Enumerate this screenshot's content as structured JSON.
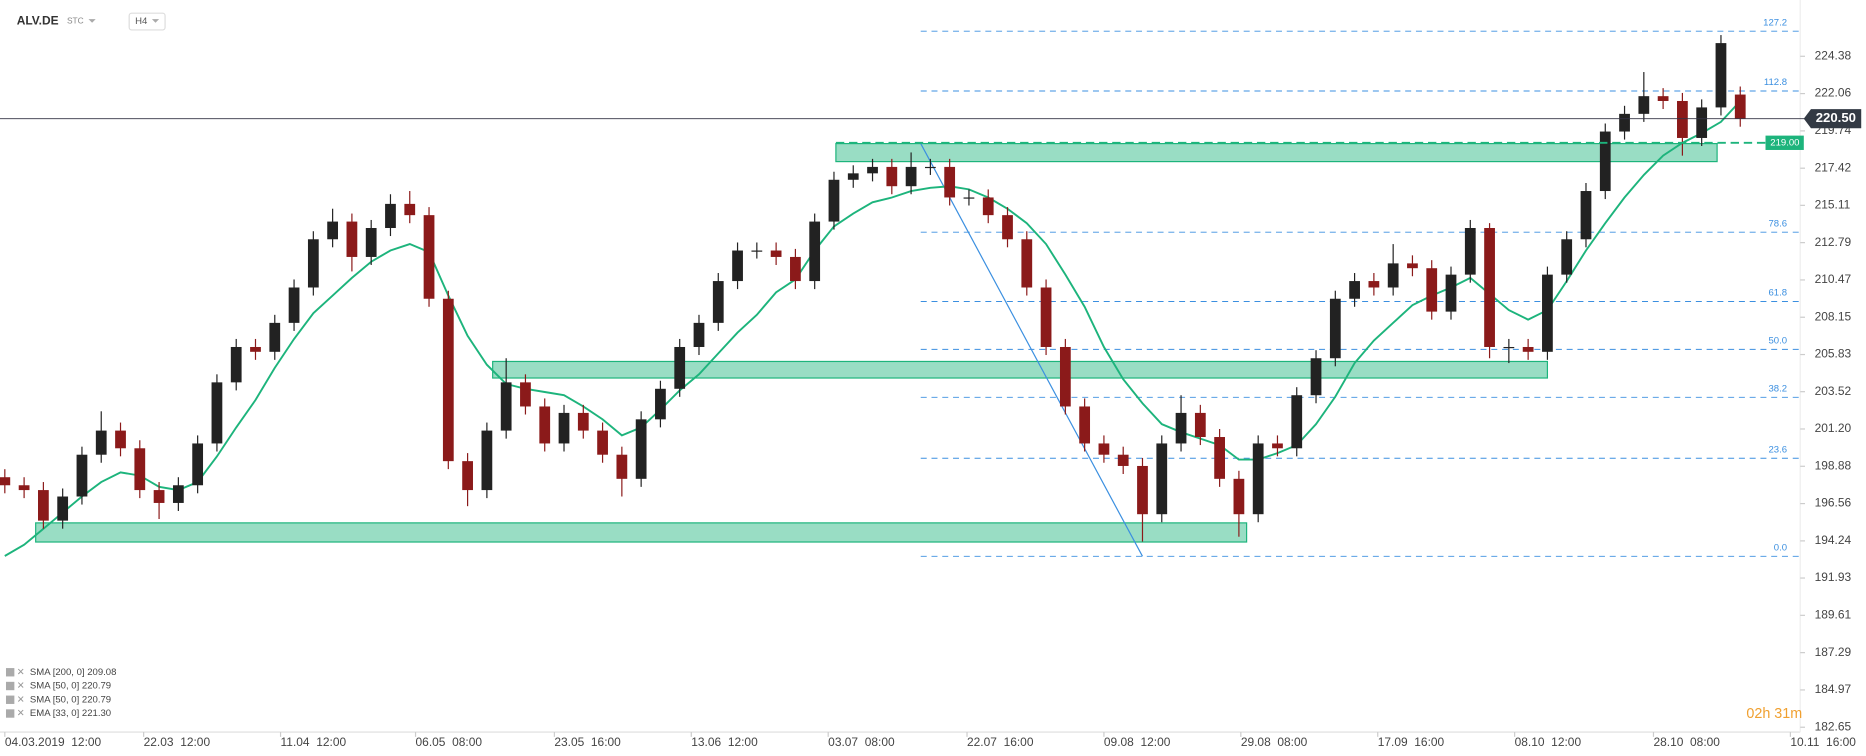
{
  "header": {
    "symbol": "ALV.DE",
    "market": "STC",
    "interval": "H4"
  },
  "timer": "02h 31m",
  "chart_data": {
    "type": "candlestick",
    "candles": {
      "open": [
        198.2,
        197.7,
        197.4,
        195.5,
        197.0,
        199.6,
        201.1,
        200.0,
        197.4,
        196.6,
        197.7,
        200.3,
        204.1,
        206.3,
        206.0,
        207.8,
        210.0,
        213.0,
        214.1,
        211.9,
        213.7,
        215.2,
        214.5,
        209.3,
        199.2,
        197.4,
        201.1,
        204.1,
        202.6,
        200.3,
        202.2,
        201.1,
        199.6,
        198.1,
        201.8,
        203.7,
        206.3,
        207.8,
        210.4,
        212.3,
        212.3,
        211.9,
        210.4,
        214.1,
        216.7,
        217.1,
        217.5,
        216.3,
        217.5,
        217.5,
        215.6,
        215.6,
        214.5,
        213.0,
        210.0,
        206.3,
        202.6,
        200.3,
        199.6,
        198.9,
        195.9,
        200.3,
        202.2,
        200.7,
        198.1,
        195.9,
        200.3,
        200.0,
        203.3,
        205.6,
        209.3,
        210.4,
        210.0,
        211.5,
        211.2,
        208.5,
        210.8,
        213.7,
        206.3,
        206.3,
        206.0,
        210.8,
        213.0,
        216.0,
        219.7,
        220.8,
        221.9,
        221.6,
        219.3,
        221.2,
        222.0
      ],
      "high": [
        198.7,
        198.2,
        197.9,
        197.5,
        200.1,
        202.3,
        201.6,
        200.5,
        197.9,
        198.2,
        200.8,
        204.6,
        206.8,
        206.8,
        208.3,
        210.5,
        213.5,
        214.9,
        214.6,
        214.2,
        215.8,
        216.0,
        215.0,
        209.8,
        199.7,
        201.6,
        205.6,
        204.6,
        203.1,
        202.7,
        202.7,
        201.6,
        200.1,
        202.3,
        204.2,
        206.8,
        208.3,
        210.9,
        212.8,
        212.8,
        212.8,
        212.4,
        214.6,
        217.2,
        217.6,
        218.0,
        218.0,
        218.4,
        218.0,
        218.0,
        216.1,
        216.1,
        215.0,
        213.5,
        210.5,
        206.8,
        203.1,
        200.8,
        200.1,
        199.4,
        200.8,
        203.3,
        202.7,
        201.2,
        198.6,
        200.8,
        200.8,
        203.8,
        206.1,
        209.8,
        210.9,
        210.9,
        212.7,
        212.0,
        211.7,
        211.3,
        214.2,
        214.0,
        206.8,
        206.8,
        211.3,
        213.5,
        216.5,
        220.2,
        221.3,
        223.4,
        222.4,
        222.1,
        221.7,
        225.7,
        222.5
      ],
      "low": [
        197.2,
        196.9,
        195.0,
        195.0,
        196.5,
        199.1,
        199.5,
        196.9,
        195.6,
        196.1,
        197.2,
        199.8,
        203.6,
        205.5,
        205.5,
        207.3,
        209.5,
        212.5,
        211.0,
        211.4,
        213.2,
        214.0,
        208.8,
        198.7,
        196.4,
        196.9,
        200.6,
        202.1,
        199.8,
        199.8,
        200.6,
        199.1,
        197.0,
        197.6,
        201.3,
        203.2,
        205.8,
        207.3,
        209.9,
        211.8,
        211.4,
        209.9,
        209.9,
        213.6,
        216.2,
        216.6,
        215.8,
        215.8,
        217.0,
        215.1,
        215.1,
        214.0,
        212.5,
        209.5,
        205.8,
        202.1,
        199.8,
        199.1,
        198.4,
        194.2,
        195.4,
        199.8,
        200.2,
        197.6,
        194.5,
        195.4,
        199.5,
        199.5,
        202.8,
        205.1,
        208.8,
        209.5,
        209.5,
        210.7,
        208.0,
        208.0,
        210.3,
        205.6,
        205.3,
        205.5,
        205.5,
        210.3,
        212.5,
        215.5,
        219.2,
        220.3,
        221.1,
        218.2,
        218.8,
        220.7,
        220.0
      ],
      "close": [
        197.7,
        197.4,
        195.5,
        197.0,
        199.6,
        201.1,
        200.0,
        197.4,
        196.6,
        197.7,
        200.3,
        204.1,
        206.3,
        206.0,
        207.8,
        210.0,
        213.0,
        214.1,
        211.9,
        213.7,
        215.2,
        214.5,
        209.3,
        199.2,
        197.4,
        201.1,
        204.1,
        202.6,
        200.3,
        202.2,
        201.1,
        199.6,
        198.1,
        201.8,
        203.7,
        206.3,
        207.8,
        210.4,
        212.3,
        212.3,
        211.9,
        210.4,
        214.1,
        216.7,
        217.1,
        217.5,
        216.3,
        217.5,
        217.5,
        215.6,
        215.6,
        214.5,
        213.0,
        210.0,
        206.3,
        202.6,
        200.3,
        199.6,
        198.9,
        195.9,
        200.3,
        202.2,
        200.7,
        198.1,
        195.9,
        200.3,
        200.0,
        203.3,
        205.6,
        209.3,
        210.4,
        210.0,
        211.5,
        211.2,
        208.5,
        210.8,
        213.7,
        206.3,
        206.3,
        206.0,
        210.8,
        213.0,
        216.0,
        219.7,
        220.8,
        221.9,
        221.6,
        219.3,
        221.2,
        225.2,
        220.5
      ],
      "up_color": "#222222",
      "down_color": "#8b1a1a"
    },
    "ma": {
      "color": "#1db47c",
      "values": [
        193.3,
        194.0,
        195.0,
        196.0,
        197.0,
        197.9,
        198.5,
        198.3,
        197.6,
        197.4,
        197.9,
        199.5,
        201.3,
        203.0,
        205.0,
        206.8,
        208.4,
        209.5,
        210.6,
        211.6,
        212.3,
        212.7,
        212.2,
        209.5,
        207.0,
        205.2,
        204.0,
        203.7,
        203.5,
        203.3,
        202.6,
        201.8,
        200.8,
        201.3,
        202.4,
        203.6,
        204.6,
        205.9,
        207.2,
        208.3,
        209.7,
        210.5,
        212.3,
        213.8,
        214.6,
        215.3,
        215.6,
        216.0,
        216.2,
        216.3,
        216.1,
        215.6,
        214.9,
        214.0,
        212.7,
        210.8,
        208.8,
        206.3,
        204.3,
        202.8,
        201.5,
        201.0,
        200.6,
        200.2,
        199.3,
        199.3,
        199.7,
        200.2,
        201.5,
        203.2,
        205.3,
        206.7,
        207.8,
        208.9,
        209.5,
        210.0,
        210.6,
        209.6,
        208.6,
        208.0,
        208.6,
        210.4,
        212.3,
        214.0,
        215.6,
        217.0,
        218.2,
        219.0,
        219.6,
        220.3,
        221.6
      ]
    },
    "zones": [
      {
        "x0": 1.6,
        "x1": 64.4,
        "top": 195.36,
        "bottom": 194.17
      },
      {
        "x0": 25.3,
        "x1": 80.0,
        "top": 205.4,
        "bottom": 204.37
      },
      {
        "x0": 43.1,
        "x1": 88.8,
        "top": 218.95,
        "bottom": 217.83
      }
    ],
    "zone_color": "#1db47c",
    "fib_start": 47.5,
    "fib_color": "#3b8fe0",
    "fib_levels": [
      {
        "label": "127.2",
        "price": 225.94
      },
      {
        "label": "112.8",
        "price": 222.22
      },
      {
        "label": "78.6",
        "price": 213.44
      },
      {
        "label": "61.8",
        "price": 209.13
      },
      {
        "label": "50.0",
        "price": 206.15
      },
      {
        "label": "38.2",
        "price": 203.17
      },
      {
        "label": "23.6",
        "price": 199.38
      },
      {
        "label": "0.0",
        "price": 193.28
      }
    ],
    "trend_line": {
      "x0": 47.5,
      "y0": 218.95,
      "x1": 59.0,
      "y1": 193.28
    },
    "price_line": {
      "value": 220.5,
      "label": "220.50"
    },
    "level_line": {
      "value": 219,
      "label": "219.00",
      "start": 43.1
    },
    "xlim": [
      -0.25,
      93.11
    ],
    "ylim": [
      182.35,
      227.88
    ],
    "xticks": [
      {
        "value": 0,
        "label": "04.03.2019  12:00"
      },
      {
        "value": 7.2,
        "label": "22.03  12:00"
      },
      {
        "value": 14.3,
        "label": "11.04  12:00"
      },
      {
        "value": 21.3,
        "label": "06.05  08:00"
      },
      {
        "value": 28.5,
        "label": "23.05  16:00"
      },
      {
        "value": 35.6,
        "label": "13.06  12:00"
      },
      {
        "value": 42.7,
        "label": "03.07  08:00"
      },
      {
        "value": 49.9,
        "label": "22.07  16:00"
      },
      {
        "value": 57.0,
        "label": "09.08  12:00"
      },
      {
        "value": 64.1,
        "label": "29.08  08:00"
      },
      {
        "value": 71.2,
        "label": "17.09  16:00"
      },
      {
        "value": 78.3,
        "label": "08.10  12:00"
      },
      {
        "value": 85.5,
        "label": "28.10  08:00"
      },
      {
        "value": 92.6,
        "label": "10.11  16:00"
      }
    ],
    "yticks": [
      224.38,
      222.06,
      219.74,
      217.42,
      215.11,
      212.79,
      210.47,
      208.15,
      205.83,
      203.52,
      {
        "value": 201.2,
        "label": "201.20"
      },
      198.88,
      196.56,
      194.24,
      191.93,
      189.61,
      187.29,
      184.97,
      182.65
    ],
    "grid": false,
    "legend": [
      "SMA [200, 0] 209.08",
      "SMA [50, 0] 220.79",
      "SMA [50, 0] 220.79",
      "EMA [33, 0] 221.30"
    ]
  }
}
